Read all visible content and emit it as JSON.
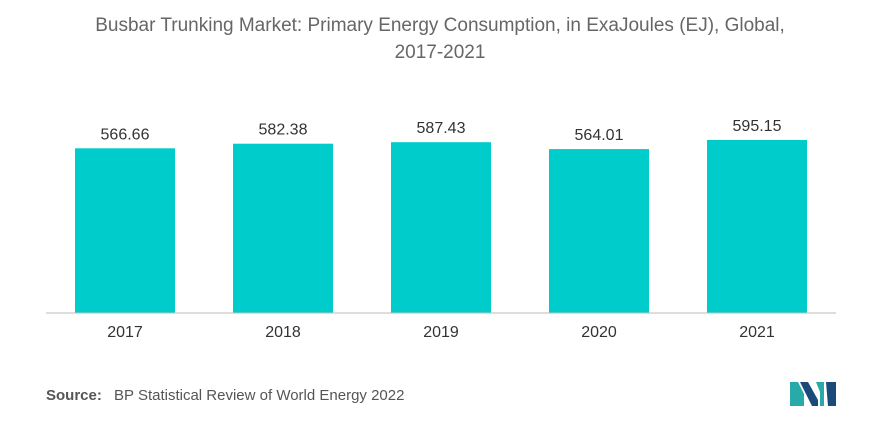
{
  "chart_data": {
    "type": "bar",
    "title": "Busbar Trunking Market: Primary Energy Consumption, in ExaJoules (EJ), Global, 2017-2021",
    "title_lines": [
      "Busbar Trunking Market: Primary Energy Consumption, in ExaJoules (EJ), Global,",
      "2017-2021"
    ],
    "categories": [
      "2017",
      "2018",
      "2019",
      "2020",
      "2021"
    ],
    "values": [
      566.66,
      582.38,
      587.43,
      564.01,
      595.15
    ],
    "value_labels": [
      "566.66",
      "582.38",
      "587.43",
      "564.01",
      "595.15"
    ],
    "xlabel": "",
    "ylabel": "",
    "bar_color": "#00cccc",
    "grid": false,
    "legend": "none"
  },
  "source": {
    "label": "Source:",
    "text": "BP Statistical Review of World Energy 2022"
  },
  "colors": {
    "bar": "#00cccc",
    "axis": "#bbbbbb",
    "title": "#666666",
    "logo_teal": "#2aa9a9",
    "logo_blue": "#1a4a7a"
  },
  "logo": {
    "icon": "mordor-intelligence-logo-icon"
  }
}
